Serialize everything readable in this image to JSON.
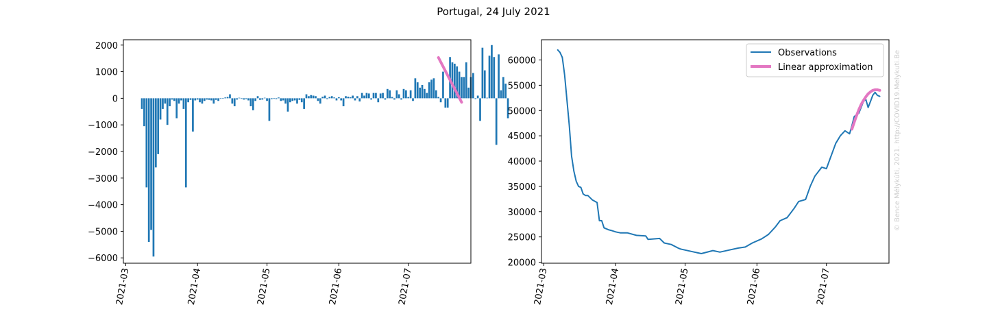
{
  "suptitle": "Portugal, 24 July 2021",
  "watermark": "© Bence Mélykúti, 2021. http://COVID19.Melykuti.Be",
  "colors": {
    "bars": "#1f77b4",
    "line": "#1f77b4",
    "fit": "#e377c2"
  },
  "chart_data": [
    {
      "type": "bar",
      "x_type": "date",
      "ylim": [
        -6200,
        2200
      ],
      "xlim": [
        "2021-02-28",
        "2021-07-28"
      ],
      "yticks": [
        2000,
        1000,
        0,
        -1000,
        -2000,
        -3000,
        -4000,
        -5000,
        -6000
      ],
      "ytick_labels": [
        "2000",
        "1000",
        "0",
        "−1000",
        "−2000",
        "−3000",
        "−4000",
        "−5000",
        "−6000"
      ],
      "xticks": [
        "2021-03-01",
        "2021-04-01",
        "2021-05-01",
        "2021-06-01",
        "2021-07-01"
      ],
      "xtick_labels": [
        "2021-03",
        "2021-04",
        "2021-05",
        "2021-06",
        "2021-07"
      ],
      "grid": false,
      "series": [
        {
          "start_date": "2021-03-08",
          "values": [
            -400,
            -1050,
            -3350,
            -5400,
            -4950,
            -5950,
            -2600,
            -2100,
            -800,
            -400,
            -200,
            -1000,
            -300,
            -50,
            -100,
            -750,
            -200,
            -80,
            -400,
            -3350,
            -150,
            -60,
            -1250,
            -80,
            -50,
            -150,
            -200,
            -100,
            -50,
            -60,
            -80,
            -200,
            -60,
            -100,
            -20,
            0,
            30,
            50,
            150,
            -200,
            -300,
            -50,
            20,
            -20,
            -50,
            -30,
            -80,
            -300,
            -450,
            -100,
            80,
            -60,
            -50,
            20,
            -100,
            -850,
            -30,
            -20,
            -30,
            30,
            -100,
            -80,
            -200,
            -500,
            -150,
            -100,
            -80,
            -200,
            -60,
            -150,
            -400,
            150,
            80,
            120,
            100,
            80,
            -100,
            -200,
            60,
            100,
            -30,
            50,
            80,
            30,
            -80,
            40,
            -80,
            -300,
            80,
            60,
            40,
            100,
            -80,
            80,
            -120,
            200,
            100,
            200,
            180,
            -50,
            200,
            200,
            -150,
            180,
            200,
            -50,
            350,
            300,
            50,
            -50,
            300,
            150,
            -50,
            350,
            300,
            50,
            300,
            -100,
            750,
            600,
            400,
            500,
            350,
            200,
            600,
            700,
            750,
            300,
            50,
            -150,
            1000,
            -350,
            -350,
            1550,
            1350,
            1300,
            1200,
            1000,
            800,
            800,
            1350,
            400,
            800,
            950,
            -30,
            100,
            -850,
            1900,
            1050,
            20,
            1600,
            2000,
            1550,
            -1750,
            1650,
            300,
            800,
            550,
            -750
          ],
          "color": "#1f77b4"
        }
      ],
      "fit": {
        "x": [
          "2021-07-14",
          "2021-07-24"
        ],
        "y": [
          1530,
          -150
        ],
        "color": "#e377c2"
      }
    },
    {
      "type": "line",
      "x_type": "date",
      "ylim": [
        19800,
        64000
      ],
      "xlim": [
        "2021-02-28",
        "2021-07-28"
      ],
      "yticks": [
        60000,
        55000,
        50000,
        45000,
        40000,
        35000,
        30000,
        25000,
        20000
      ],
      "ytick_labels": [
        "60000",
        "55000",
        "50000",
        "45000",
        "40000",
        "35000",
        "30000",
        "25000",
        "20000"
      ],
      "xticks": [
        "2021-03-01",
        "2021-04-01",
        "2021-05-01",
        "2021-06-01",
        "2021-07-01"
      ],
      "xtick_labels": [
        "2021-03",
        "2021-04",
        "2021-05",
        "2021-06",
        "2021-07"
      ],
      "grid": false,
      "legend": {
        "position": "top-right",
        "entries": [
          {
            "label": "Observations",
            "color": "#1f77b4"
          },
          {
            "label": "Linear approximation",
            "color": "#e377c2"
          }
        ]
      },
      "series": [
        {
          "name": "Observations",
          "x": [
            "2021-03-07",
            "2021-03-08",
            "2021-03-09",
            "2021-03-10",
            "2021-03-11",
            "2021-03-12",
            "2021-03-13",
            "2021-03-14",
            "2021-03-15",
            "2021-03-16",
            "2021-03-17",
            "2021-03-18",
            "2021-03-19",
            "2021-03-20",
            "2021-03-22",
            "2021-03-24",
            "2021-03-25",
            "2021-03-26",
            "2021-03-27",
            "2021-03-28",
            "2021-03-29",
            "2021-03-30",
            "2021-04-01",
            "2021-04-03",
            "2021-04-06",
            "2021-04-10",
            "2021-04-14",
            "2021-04-15",
            "2021-04-20",
            "2021-04-22",
            "2021-04-25",
            "2021-04-28",
            "2021-04-29",
            "2021-05-05",
            "2021-05-08",
            "2021-05-13",
            "2021-05-16",
            "2021-05-20",
            "2021-05-24",
            "2021-05-27",
            "2021-05-30",
            "2021-06-03",
            "2021-06-06",
            "2021-06-09",
            "2021-06-11",
            "2021-06-14",
            "2021-06-17",
            "2021-06-19",
            "2021-06-22",
            "2021-06-24",
            "2021-06-26",
            "2021-06-29",
            "2021-07-01",
            "2021-07-03",
            "2021-07-05",
            "2021-07-07",
            "2021-07-09",
            "2021-07-11",
            "2021-07-12",
            "2021-07-13",
            "2021-07-15",
            "2021-07-17",
            "2021-07-18",
            "2021-07-19",
            "2021-07-20",
            "2021-07-21",
            "2021-07-22",
            "2021-07-23",
            "2021-07-24"
          ],
          "y": [
            62000,
            61500,
            60500,
            57000,
            52000,
            47000,
            41000,
            38000,
            36000,
            35000,
            34800,
            33500,
            33200,
            33200,
            32300,
            31800,
            28200,
            28200,
            26800,
            26600,
            26400,
            26300,
            26000,
            25800,
            25800,
            25300,
            25200,
            24500,
            24700,
            23800,
            23500,
            22800,
            22600,
            22000,
            21700,
            22300,
            22000,
            22400,
            22800,
            23000,
            23800,
            24600,
            25500,
            27000,
            28200,
            28800,
            30600,
            32000,
            32400,
            35000,
            37000,
            38800,
            38500,
            41000,
            43500,
            45000,
            46000,
            45400,
            47000,
            48800,
            49500,
            51800,
            52200,
            50600,
            51800,
            53000,
            53600,
            53000,
            52800
          ],
          "color": "#1f77b4"
        },
        {
          "name": "Linear approximation",
          "x": [
            "2021-07-12",
            "2021-07-13",
            "2021-07-14",
            "2021-07-15",
            "2021-07-16",
            "2021-07-17",
            "2021-07-18",
            "2021-07-19",
            "2021-07-20",
            "2021-07-21",
            "2021-07-22",
            "2021-07-23",
            "2021-07-24"
          ],
          "y": [
            46300,
            47700,
            49000,
            50200,
            51200,
            52000,
            52700,
            53300,
            53700,
            54000,
            54100,
            54100,
            54000
          ],
          "color": "#e377c2"
        }
      ]
    }
  ]
}
